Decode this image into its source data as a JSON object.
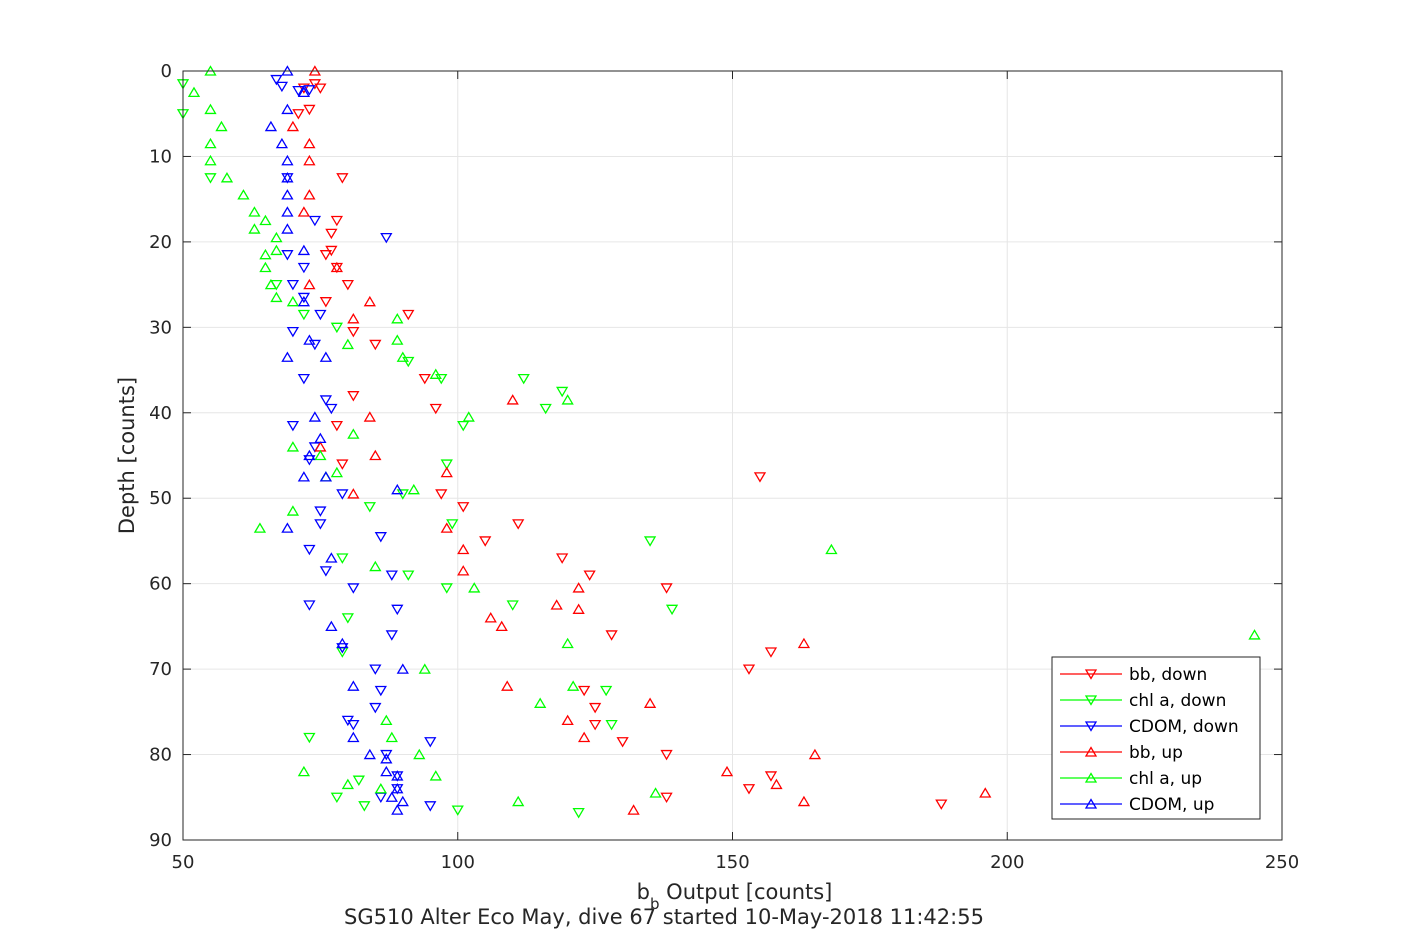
{
  "colors": {
    "bb": "#ff0000",
    "chl": "#00ff00",
    "cdom": "#0000ff",
    "grid": "#e6e6e6",
    "axis": "#262626"
  },
  "chart_data": {
    "type": "scatter",
    "title": "",
    "xlabel_main": "b",
    "xlabel_sub": "b",
    "xlabel_rest": " Output [counts]",
    "ylabel": "Depth [counts]",
    "caption": "SG510 Alter Eco May, dive 67 started 10-May-2018 11:42:55",
    "xlim": [
      50,
      250
    ],
    "ylim": [
      0,
      90
    ],
    "y_reversed": true,
    "xticks": [
      50,
      100,
      150,
      200,
      250
    ],
    "yticks": [
      0,
      10,
      20,
      30,
      40,
      50,
      60,
      70,
      80,
      90
    ],
    "grid": true,
    "legend_position": "bottom-right",
    "series": [
      {
        "name": "bb, down",
        "marker": "triangle-down",
        "color": "#ff0000",
        "points": [
          [
            74,
            1.5
          ],
          [
            72,
            2
          ],
          [
            75,
            2
          ],
          [
            73,
            4.5
          ],
          [
            71,
            5
          ],
          [
            79,
            12.5
          ],
          [
            78,
            17.5
          ],
          [
            77,
            19
          ],
          [
            77,
            21
          ],
          [
            76,
            21.5
          ],
          [
            78,
            23
          ],
          [
            80,
            25
          ],
          [
            76,
            27
          ],
          [
            91,
            28.5
          ],
          [
            81,
            30.5
          ],
          [
            85,
            32
          ],
          [
            94,
            36
          ],
          [
            81,
            38
          ],
          [
            96,
            39.5
          ],
          [
            78,
            41.5
          ],
          [
            79,
            46
          ],
          [
            155,
            47.5
          ],
          [
            97,
            49.5
          ],
          [
            101,
            51
          ],
          [
            111,
            53
          ],
          [
            105,
            55
          ],
          [
            119,
            57
          ],
          [
            124,
            59
          ],
          [
            138,
            60.5
          ],
          [
            128,
            66
          ],
          [
            157,
            68
          ],
          [
            153,
            70
          ],
          [
            123,
            72.5
          ],
          [
            125,
            74.5
          ],
          [
            125,
            76.5
          ],
          [
            130,
            78.5
          ],
          [
            138,
            80
          ],
          [
            157,
            82.5
          ],
          [
            153,
            84
          ],
          [
            138,
            85
          ],
          [
            188,
            85.8
          ]
        ]
      },
      {
        "name": "chl a, down",
        "marker": "triangle-down",
        "color": "#00ff00",
        "points": [
          [
            50,
            1.5
          ],
          [
            50,
            5
          ],
          [
            55,
            12.5
          ],
          [
            67,
            25
          ],
          [
            72,
            28.5
          ],
          [
            78,
            30
          ],
          [
            91,
            34
          ],
          [
            97,
            36
          ],
          [
            112,
            36
          ],
          [
            119,
            37.5
          ],
          [
            116,
            39.5
          ],
          [
            101,
            41.5
          ],
          [
            98,
            46
          ],
          [
            90,
            49.5
          ],
          [
            84,
            51
          ],
          [
            99,
            53
          ],
          [
            135,
            55
          ],
          [
            79,
            57
          ],
          [
            91,
            59
          ],
          [
            98,
            60.5
          ],
          [
            110,
            62.5
          ],
          [
            139,
            63
          ],
          [
            80,
            64
          ],
          [
            79,
            68
          ],
          [
            73,
            78
          ],
          [
            82,
            83
          ],
          [
            78,
            85
          ],
          [
            83,
            86
          ],
          [
            100,
            86.5
          ],
          [
            122,
            86.8
          ],
          [
            128,
            76.5
          ],
          [
            127,
            72.5
          ]
        ]
      },
      {
        "name": "CDOM, down",
        "marker": "triangle-down",
        "color": "#0000ff",
        "points": [
          [
            67,
            1
          ],
          [
            68,
            1.8
          ],
          [
            71,
            2.3
          ],
          [
            73,
            2.2
          ],
          [
            69,
            12.5
          ],
          [
            74,
            17.5
          ],
          [
            87,
            19.5
          ],
          [
            69,
            21.5
          ],
          [
            72,
            23
          ],
          [
            70,
            25
          ],
          [
            72,
            26.5
          ],
          [
            75,
            28.5
          ],
          [
            70,
            30.5
          ],
          [
            74,
            32
          ],
          [
            72,
            36
          ],
          [
            76,
            38.5
          ],
          [
            77,
            39.5
          ],
          [
            70,
            41.5
          ],
          [
            74,
            44
          ],
          [
            73,
            45.5
          ],
          [
            79,
            49.5
          ],
          [
            75,
            51.5
          ],
          [
            75,
            53
          ],
          [
            86,
            54.5
          ],
          [
            73,
            56
          ],
          [
            76,
            58.5
          ],
          [
            88,
            59
          ],
          [
            81,
            60.5
          ],
          [
            73,
            62.5
          ],
          [
            89,
            63
          ],
          [
            88,
            66
          ],
          [
            79,
            67.5
          ],
          [
            85,
            70
          ],
          [
            86,
            72.5
          ],
          [
            85,
            74.5
          ],
          [
            80,
            76
          ],
          [
            81,
            76.5
          ],
          [
            95,
            78.5
          ],
          [
            87,
            80
          ],
          [
            89,
            82.5
          ],
          [
            89,
            84
          ],
          [
            86,
            85
          ],
          [
            95,
            86
          ]
        ]
      },
      {
        "name": "bb, up",
        "marker": "triangle-up",
        "color": "#ff0000",
        "points": [
          [
            74,
            0
          ],
          [
            70,
            6.5
          ],
          [
            73,
            8.5
          ],
          [
            73,
            10.5
          ],
          [
            73,
            14.5
          ],
          [
            72,
            16.5
          ],
          [
            78,
            23
          ],
          [
            73,
            25
          ],
          [
            84,
            27
          ],
          [
            81,
            29
          ],
          [
            84,
            40.5
          ],
          [
            75,
            44
          ],
          [
            85,
            45
          ],
          [
            98,
            47
          ],
          [
            81,
            49.5
          ],
          [
            98,
            53.5
          ],
          [
            101,
            56
          ],
          [
            101,
            58.5
          ],
          [
            110,
            38.5
          ],
          [
            122,
            60.5
          ],
          [
            118,
            62.5
          ],
          [
            122,
            63
          ],
          [
            106,
            64
          ],
          [
            108,
            65
          ],
          [
            163,
            67
          ],
          [
            109,
            72
          ],
          [
            135,
            74
          ],
          [
            120,
            76
          ],
          [
            123,
            78
          ],
          [
            165,
            80
          ],
          [
            149,
            82
          ],
          [
            158,
            83.5
          ],
          [
            196,
            84.5
          ],
          [
            163,
            85.5
          ],
          [
            132,
            86.5
          ]
        ]
      },
      {
        "name": "chl a, up",
        "marker": "triangle-up",
        "color": "#00ff00",
        "points": [
          [
            55,
            0
          ],
          [
            52,
            2.5
          ],
          [
            55,
            4.5
          ],
          [
            57,
            6.5
          ],
          [
            55,
            8.5
          ],
          [
            55,
            10.5
          ],
          [
            58,
            12.5
          ],
          [
            61,
            14.5
          ],
          [
            63,
            16.5
          ],
          [
            65,
            17.5
          ],
          [
            63,
            18.5
          ],
          [
            67,
            19.5
          ],
          [
            65,
            21.5
          ],
          [
            67,
            21
          ],
          [
            65,
            23
          ],
          [
            66,
            25
          ],
          [
            67,
            26.5
          ],
          [
            70,
            27
          ],
          [
            89,
            29
          ],
          [
            89,
            31.5
          ],
          [
            80,
            32
          ],
          [
            90,
            33.5
          ],
          [
            96,
            35.5
          ],
          [
            120,
            38.5
          ],
          [
            102,
            40.5
          ],
          [
            81,
            42.5
          ],
          [
            70,
            44
          ],
          [
            75,
            45
          ],
          [
            78,
            47
          ],
          [
            76,
            47.5
          ],
          [
            92,
            49
          ],
          [
            70,
            51.5
          ],
          [
            64,
            53.5
          ],
          [
            168,
            56
          ],
          [
            85,
            58
          ],
          [
            103,
            60.5
          ],
          [
            120,
            67
          ],
          [
            94,
            70
          ],
          [
            121,
            72
          ],
          [
            115,
            74
          ],
          [
            87,
            76
          ],
          [
            88,
            78
          ],
          [
            93,
            80
          ],
          [
            72,
            82
          ],
          [
            96,
            82.5
          ],
          [
            80,
            83.5
          ],
          [
            86,
            84
          ],
          [
            136,
            84.5
          ],
          [
            111,
            85.5
          ],
          [
            245,
            66
          ]
        ]
      },
      {
        "name": "CDOM, up",
        "marker": "triangle-up",
        "color": "#0000ff",
        "points": [
          [
            69,
            0
          ],
          [
            72,
            2.5
          ],
          [
            69,
            4.5
          ],
          [
            66,
            6.5
          ],
          [
            68,
            8.5
          ],
          [
            69,
            10.5
          ],
          [
            69,
            12.5
          ],
          [
            69,
            14.5
          ],
          [
            69,
            16.5
          ],
          [
            69,
            18.5
          ],
          [
            72,
            21
          ],
          [
            72,
            27
          ],
          [
            73,
            31.5
          ],
          [
            76,
            33.5
          ],
          [
            69,
            33.5
          ],
          [
            74,
            40.5
          ],
          [
            75,
            43
          ],
          [
            73,
            45
          ],
          [
            76,
            47.5
          ],
          [
            72,
            47.5
          ],
          [
            89,
            49
          ],
          [
            69,
            53.5
          ],
          [
            77,
            57
          ],
          [
            77,
            65
          ],
          [
            79,
            67
          ],
          [
            90,
            70
          ],
          [
            81,
            72
          ],
          [
            81,
            78
          ],
          [
            84,
            80
          ],
          [
            87,
            80.5
          ],
          [
            87,
            82
          ],
          [
            89,
            82.5
          ],
          [
            89,
            84
          ],
          [
            88,
            85
          ],
          [
            90,
            85.5
          ],
          [
            89,
            86.5
          ]
        ]
      }
    ]
  }
}
